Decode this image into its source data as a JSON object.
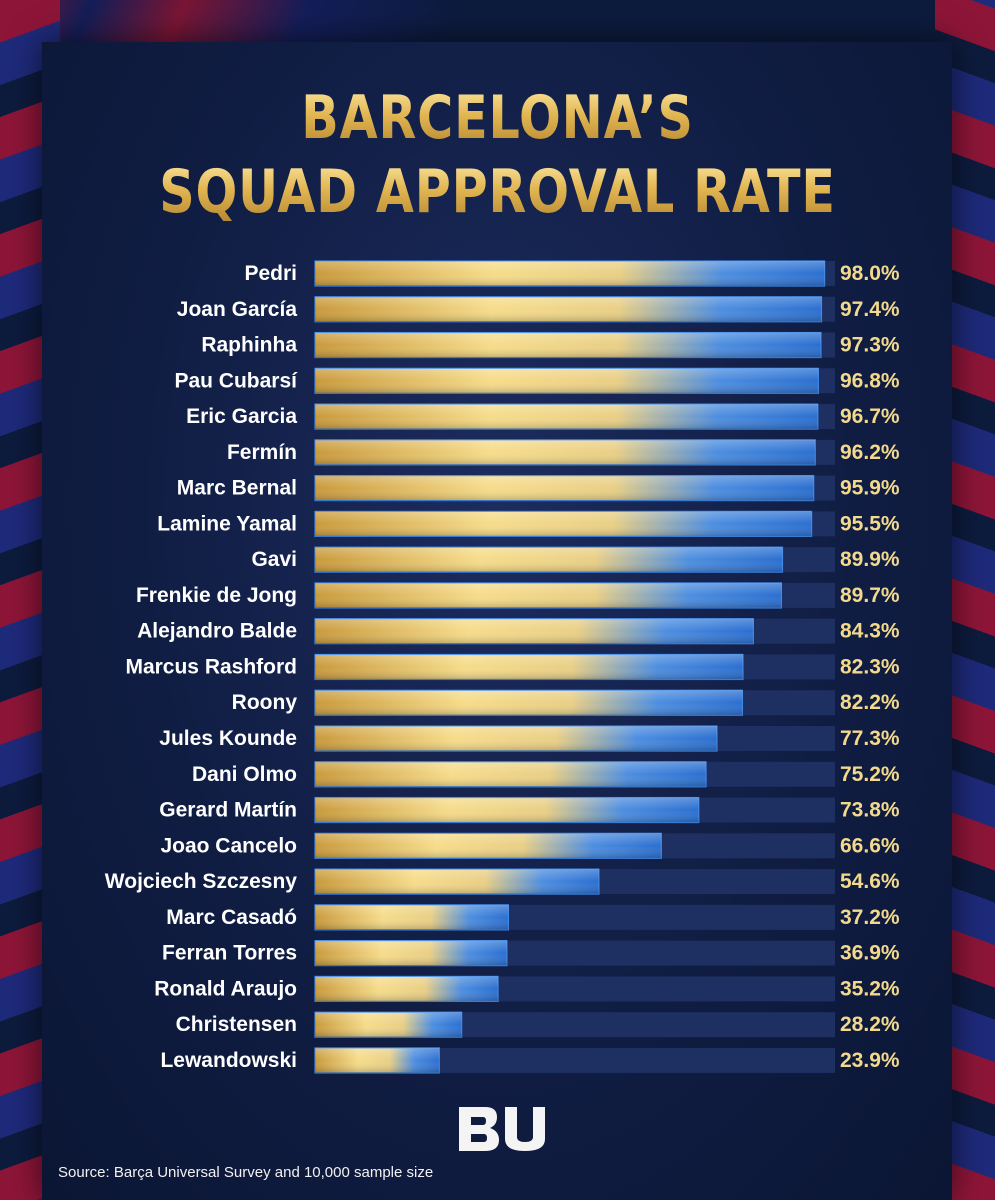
{
  "title_line1": "BARCELONA’S",
  "title_line2": "SQUAD APPROVAL RATE",
  "source": "Source: Barça Universal Survey and 10,000 sample size",
  "logo_text": "BU",
  "colors": {
    "gold": "#e8c25c",
    "gold_light": "#fbe9a6",
    "blue": "#2f7ad6",
    "track": "#1e2f62",
    "label": "#ffffff",
    "value": "#f3d98c"
  },
  "chart_data": {
    "type": "bar",
    "orientation": "horizontal",
    "xlim": [
      0,
      100
    ],
    "categories": [
      "Pedri",
      "Joan García",
      "Raphinha",
      "Pau Cubarsí",
      "Eric Garcia",
      "Fermín",
      "Marc Bernal",
      "Lamine Yamal",
      "Gavi",
      "Frenkie de Jong",
      "Alejandro Balde",
      "Marcus Rashford",
      "Roony",
      "Jules Kounde",
      "Dani Olmo",
      "Gerard Martín",
      "Joao Cancelo",
      "Wojciech Szczesny",
      "Marc Casadó",
      "Ferran Torres",
      "Ronald Araujo",
      "Christensen",
      "Lewandowski"
    ],
    "values": [
      98.0,
      97.4,
      97.3,
      96.8,
      96.7,
      96.2,
      95.9,
      95.5,
      89.9,
      89.7,
      84.3,
      82.3,
      82.2,
      77.3,
      75.2,
      73.8,
      66.6,
      54.6,
      37.2,
      36.9,
      35.2,
      28.2,
      23.9
    ],
    "value_labels": [
      "98.0%",
      "97.4%",
      "97.3%",
      "96.8%",
      "96.7%",
      "96.2%",
      "95.9%",
      "95.5%",
      "89.9%",
      "89.7%",
      "84.3%",
      "82.3%",
      "82.2%",
      "77.3%",
      "75.2%",
      "73.8%",
      "66.6%",
      "54.6%",
      "37.2%",
      "36.9%",
      "35.2%",
      "28.2%",
      "23.9%"
    ]
  }
}
